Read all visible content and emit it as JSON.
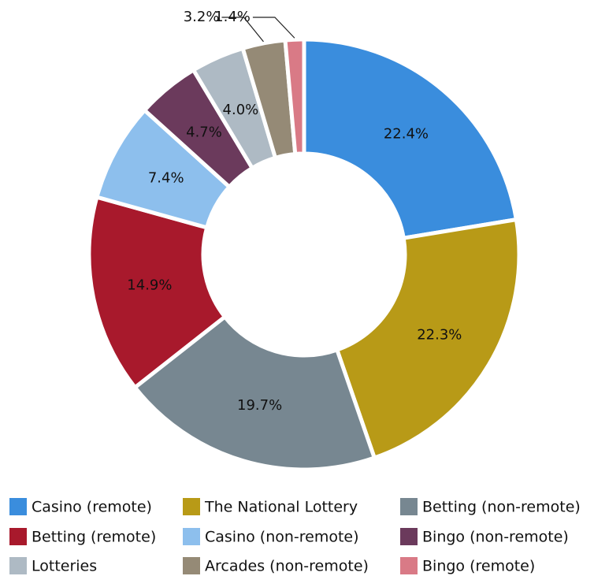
{
  "chart_data": {
    "type": "donut",
    "categories": [
      "Casino (remote)",
      "The National Lottery",
      "Betting (non-remote)",
      "Betting (remote)",
      "Casino (non-remote)",
      "Bingo (non-remote)",
      "Lotteries",
      "Arcades (non-remote)",
      "Bingo (remote)"
    ],
    "values": [
      22.4,
      22.3,
      19.7,
      14.9,
      7.4,
      4.7,
      4.0,
      3.2,
      1.4
    ],
    "value_labels": [
      "22.4%",
      "22.3%",
      "19.7%",
      "14.9%",
      "7.4%",
      "4.7%",
      "4.0%",
      "3.2%",
      "1.4%"
    ],
    "colors": [
      "#3a8ddd",
      "#b89a17",
      "#778791",
      "#a8192c",
      "#8dbfed",
      "#6b3a5c",
      "#aebac4",
      "#958a76",
      "#d97a86"
    ],
    "legend": "bottom"
  }
}
